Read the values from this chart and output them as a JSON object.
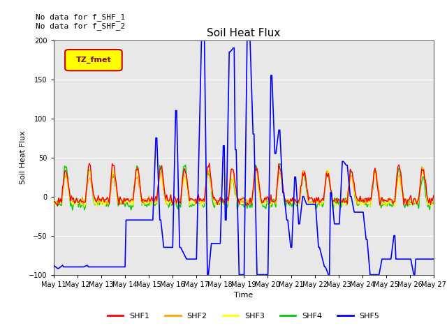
{
  "title": "Soil Heat Flux",
  "xlabel": "Time",
  "ylabel": "Soil Heat Flux",
  "ylim": [
    -100,
    200
  ],
  "yticks": [
    -100,
    -50,
    0,
    50,
    100,
    150,
    200
  ],
  "annotation_text": "No data for f_SHF_1\nNo data for f_SHF_2",
  "legend_box_label": "TZ_fmet",
  "legend_box_color": "#ffff00",
  "legend_box_border": "#cc0000",
  "bg_color": "#e8e8e8",
  "colors": {
    "SHF1": "#ff0000",
    "SHF2": "#ffa500",
    "SHF3": "#ffff00",
    "SHF4": "#00cc00",
    "SHF5": "#0000ff"
  },
  "xtick_labels": [
    "May 11",
    "May 12",
    "May 13",
    "May 14",
    "May 15",
    "May 16",
    "May 17",
    "May 18",
    "May 19",
    "May 20",
    "May 21",
    "May 22",
    "May 23",
    "May 24",
    "May 25",
    "May 26",
    "May 27"
  ]
}
